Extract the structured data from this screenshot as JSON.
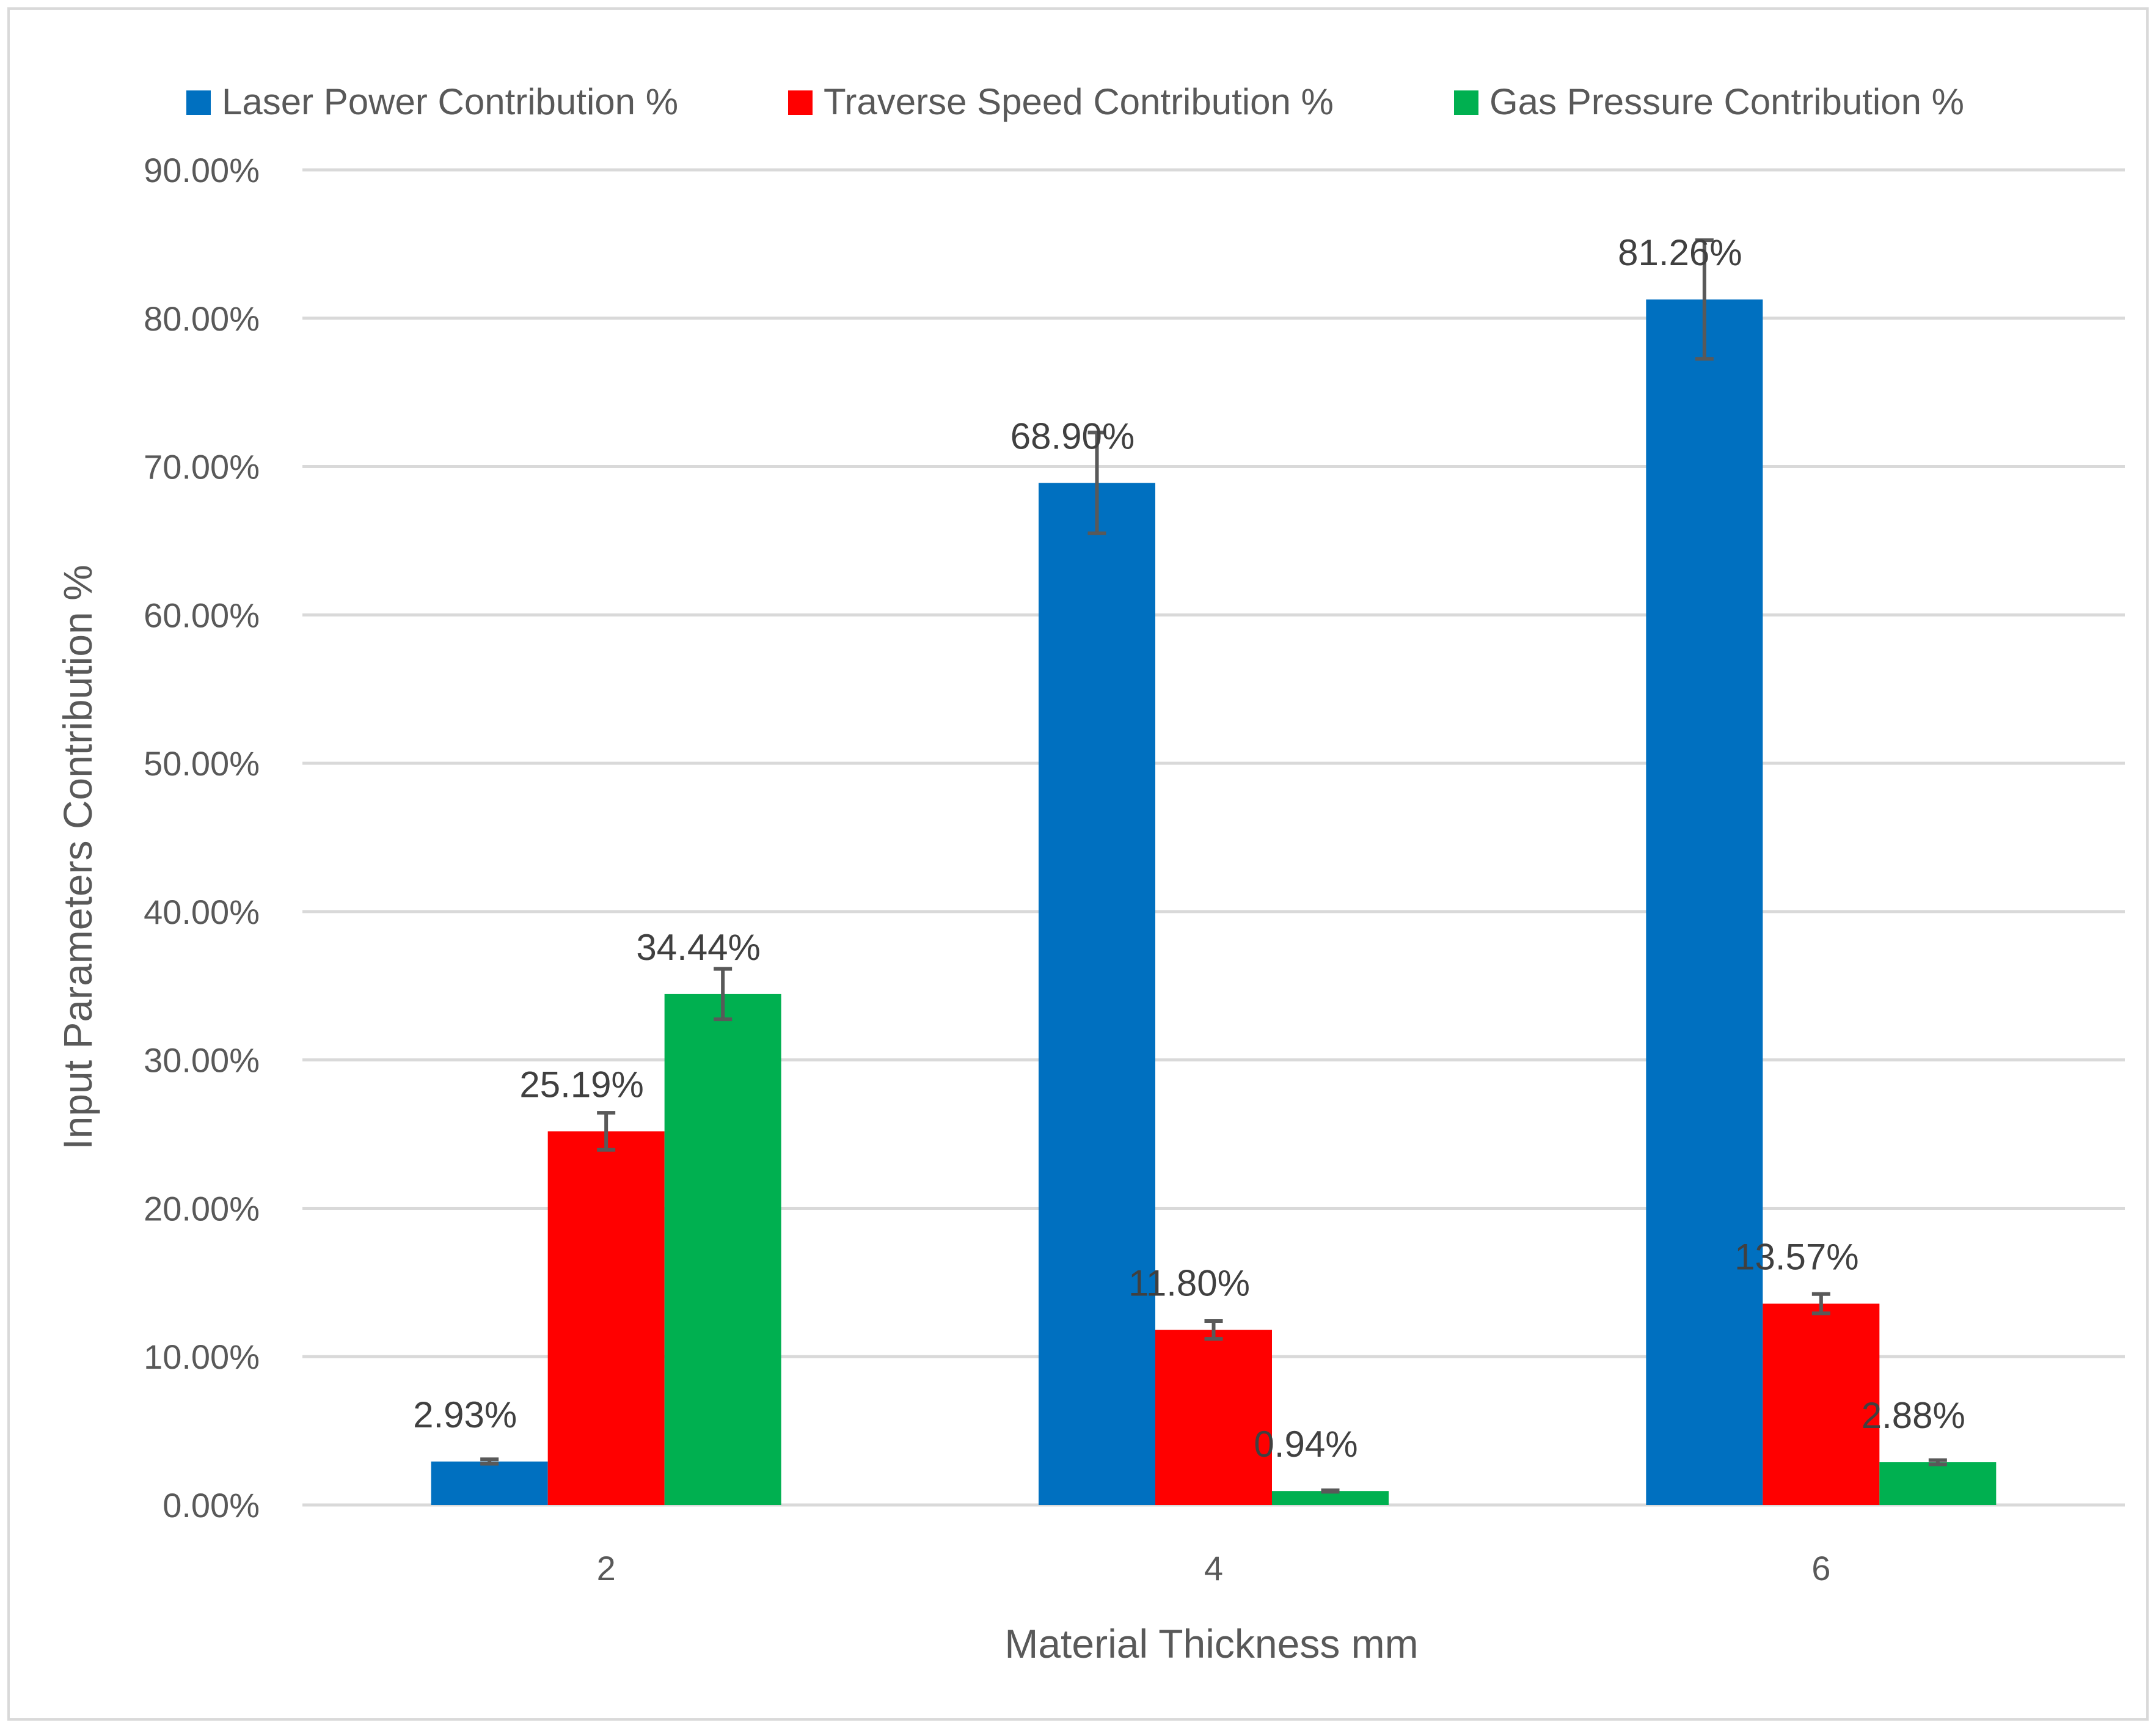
{
  "chart_data": {
    "type": "bar",
    "title": "",
    "xlabel": "Material Thickness mm",
    "ylabel": "Input Parameters Contribution %",
    "categories": [
      "2",
      "4",
      "6"
    ],
    "ylim": [
      0,
      90
    ],
    "ytick_values": [
      0,
      10,
      20,
      30,
      40,
      50,
      60,
      70,
      80,
      90
    ],
    "ytick_labels": [
      "0.00%",
      "10.00%",
      "20.00%",
      "30.00%",
      "40.00%",
      "50.00%",
      "60.00%",
      "70.00%",
      "80.00%",
      "90.00%"
    ],
    "grid": true,
    "legend_position": "top",
    "series": [
      {
        "name": "Laser Power Contribution %",
        "color": "#0070C0",
        "values": [
          2.93,
          68.9,
          81.26
        ],
        "labels": [
          "2.93%",
          "68.90%",
          "81.26%"
        ],
        "error": [
          0.15,
          3.4,
          4.0
        ]
      },
      {
        "name": "Traverse Speed Contribution %",
        "color": "#FF0000",
        "values": [
          25.19,
          11.8,
          13.57
        ],
        "labels": [
          "25.19%",
          "11.80%",
          "13.57%"
        ],
        "error": [
          1.25,
          0.6,
          0.65
        ]
      },
      {
        "name": "Gas Pressure Contribution %",
        "color": "#00B050",
        "values": [
          34.44,
          0.94,
          2.88
        ],
        "labels": [
          "34.44%",
          "0.94%",
          "2.88%"
        ],
        "error": [
          1.7,
          0.05,
          0.14
        ]
      }
    ]
  }
}
